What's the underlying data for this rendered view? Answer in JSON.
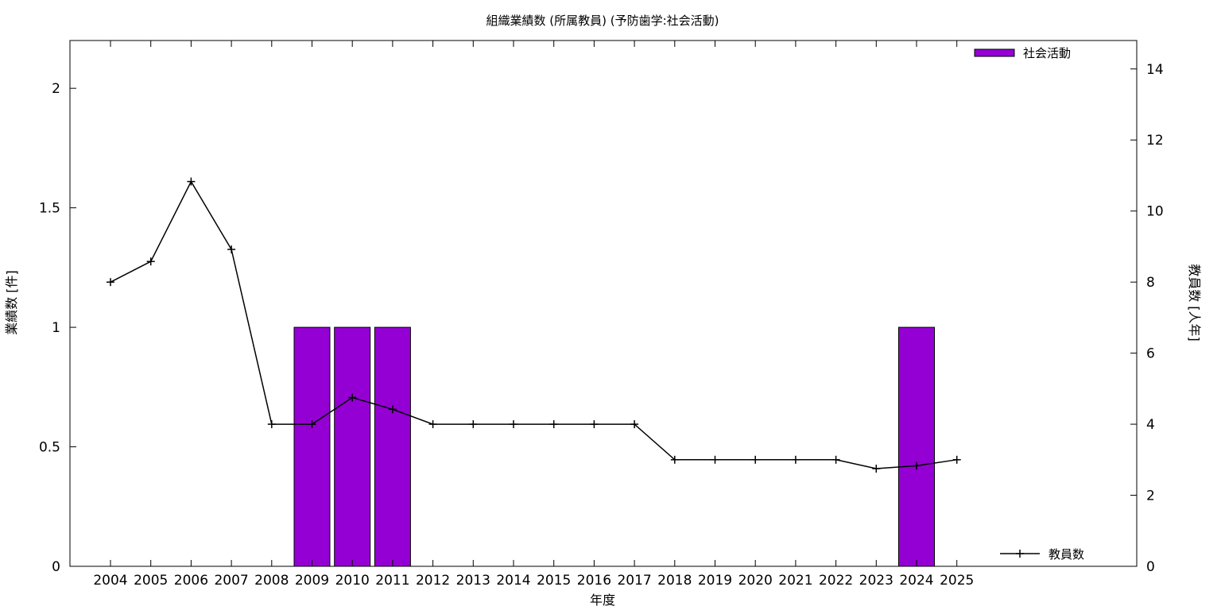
{
  "chart_data": {
    "type": "bar",
    "title": "組織業績数 (所属教員) (予防歯学:社会活動)",
    "xlabel": "年度",
    "ylabel": "業績数 [件]",
    "y2label": "教員数 [人年]",
    "categories": [
      "2004",
      "2005",
      "2006",
      "2007",
      "2008",
      "2009",
      "2010",
      "2011",
      "2012",
      "2013",
      "2014",
      "2015",
      "2016",
      "2017",
      "2018",
      "2019",
      "2020",
      "2021",
      "2022",
      "2023",
      "2024",
      "2025"
    ],
    "ylim": [
      0,
      2.2
    ],
    "y2lim": [
      0,
      14.8
    ],
    "yticks": [
      0,
      0.5,
      1,
      1.5,
      2
    ],
    "ytick_labels": [
      "0",
      "0.5",
      "1",
      "1.5",
      "2"
    ],
    "y2ticks": [
      0,
      2,
      4,
      6,
      8,
      10,
      12,
      14
    ],
    "y2tick_labels": [
      "0",
      "2",
      "4",
      "6",
      "8",
      "10",
      "12",
      "14"
    ],
    "grid": false,
    "series": [
      {
        "name": "社会活動",
        "type": "bar",
        "axis": "left",
        "color": "#9400D3",
        "values": [
          0,
          0,
          0,
          0,
          0,
          1,
          1,
          1,
          0,
          0,
          0,
          0,
          0,
          0,
          0,
          0,
          0,
          0,
          0,
          0,
          1,
          0
        ]
      },
      {
        "name": "教員数",
        "type": "line",
        "axis": "right",
        "color": "#000000",
        "marker": "plus",
        "values": [
          8.0,
          8.58,
          10.83,
          8.92,
          4.0,
          4.0,
          4.75,
          4.42,
          4.0,
          4.0,
          4.0,
          4.0,
          4.0,
          4.0,
          3.0,
          3.0,
          3.0,
          3.0,
          3.0,
          2.75,
          2.83,
          3.0
        ]
      }
    ],
    "legend": [
      {
        "label": "社会活動",
        "placement": "top-right",
        "symbol": "bar"
      },
      {
        "label": "教員数",
        "placement": "bottom-right",
        "symbol": "line-plus"
      }
    ]
  }
}
